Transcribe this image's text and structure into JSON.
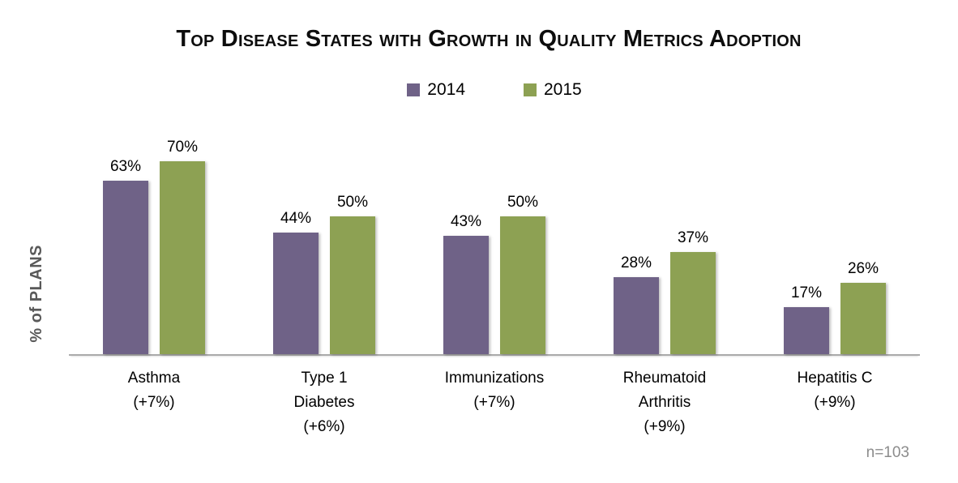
{
  "chart_data": {
    "type": "bar",
    "title": "Top Disease States with Growth in Quality Metrics Adoption",
    "ylabel": "% of PLANS",
    "note": "n=103",
    "ylim": [
      0,
      100
    ],
    "grid": false,
    "legend_position": "top-center",
    "value_suffix": "%",
    "categories": [
      "Asthma",
      "Type 1 Diabetes",
      "Immunizations",
      "Rheumatoid Arthritis",
      "Hepatitis C"
    ],
    "category_growth": [
      "+7%",
      "+6%",
      "+7%",
      "+9%",
      "+9%"
    ],
    "category_label_lines": [
      [
        "Asthma",
        "(+7%)"
      ],
      [
        "Type 1",
        "Diabetes",
        "(+6%)"
      ],
      [
        "Immunizations",
        "(+7%)"
      ],
      [
        "Rheumatoid",
        "Arthritis",
        "(+9%)"
      ],
      [
        "Hepatitis C",
        "(+9%)"
      ]
    ],
    "series": [
      {
        "name": "2014",
        "color": "#6F6287",
        "values": [
          63,
          44,
          43,
          28,
          17
        ]
      },
      {
        "name": "2015",
        "color": "#8DA153",
        "values": [
          70,
          50,
          50,
          37,
          26
        ]
      }
    ],
    "colors": {
      "axis_line": "#ababab",
      "axis_title": "#595959",
      "note_text": "#8c8c8c"
    }
  }
}
